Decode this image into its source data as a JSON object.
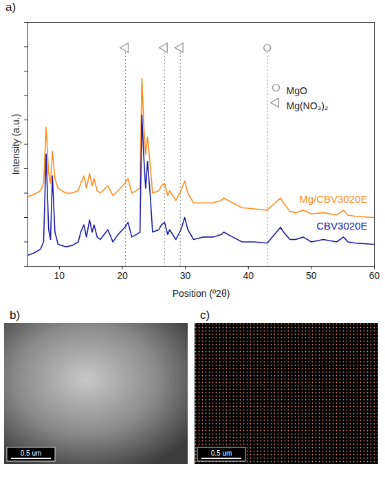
{
  "panel_label": "a)",
  "chart_data": {
    "type": "line",
    "x_label": "Position (º2θ)",
    "y_label": "Intensity (a.u.)",
    "xlim": [
      5,
      60
    ],
    "xticks": [
      10,
      20,
      30,
      40,
      50,
      60
    ],
    "ylim": [
      0,
      100
    ],
    "yticks": [
      0,
      10,
      20,
      30,
      40,
      50,
      60,
      70,
      80,
      90,
      100
    ],
    "tick_labels": "x",
    "legend": "upper right",
    "x": [
      5,
      6,
      7,
      7.5,
      7.9,
      8.3,
      8.6,
      8.9,
      9.3,
      9.8,
      11,
      12,
      13,
      13.4,
      13.9,
      14.3,
      14.8,
      15.2,
      15.5,
      16,
      16.5,
      17.7,
      18.5,
      19.3,
      20.4,
      20.9,
      21.5,
      22.2,
      22.8,
      23.1,
      23.4,
      23.7,
      24.0,
      24.4,
      24.8,
      25.8,
      26.2,
      26.7,
      27.2,
      27.5,
      28.5,
      29.3,
      29.9,
      30.4,
      31.3,
      32.8,
      34.4,
      35.7,
      36.1,
      37.5,
      39,
      41,
      43,
      45.1,
      45.6,
      46.6,
      47.5,
      48.7,
      50,
      51.9,
      54,
      55.1,
      55.8,
      57,
      60
    ],
    "series": [
      {
        "name": "Mg/CBV3020E",
        "color": "#ff8c1a",
        "values": [
          28.5,
          29.5,
          31,
          34,
          57,
          38,
          34,
          47,
          36,
          32,
          30,
          30,
          31,
          34,
          37,
          32,
          38,
          33,
          36,
          31,
          30,
          33,
          29,
          31,
          34,
          36,
          30,
          31,
          32,
          77,
          58,
          46,
          53,
          42,
          30,
          31,
          33,
          34,
          29,
          31,
          27,
          31,
          35,
          30,
          26,
          26,
          26,
          27,
          28,
          26,
          24,
          23.5,
          23,
          28,
          26,
          22.5,
          22,
          23,
          21.5,
          22,
          21,
          23,
          21,
          20.5,
          20
        ]
      },
      {
        "name": "CBV3020E",
        "color": "#1a1aaa",
        "values": [
          4.5,
          5.5,
          7,
          10,
          46,
          15,
          11,
          37,
          14,
          9,
          8,
          8.5,
          10,
          14,
          17,
          12,
          19,
          14,
          17,
          12,
          11,
          15,
          10,
          13,
          16,
          18,
          12,
          13,
          14,
          62,
          45,
          32,
          43,
          30,
          14,
          15,
          17,
          18,
          13,
          15,
          11,
          15,
          20,
          15,
          11,
          12,
          12,
          13,
          14,
          12,
          10,
          10,
          9.5,
          16,
          14,
          11,
          11,
          12,
          10,
          11,
          10,
          12,
          10,
          9.5,
          9
        ]
      }
    ],
    "reference_markers": [
      {
        "name": "MgO",
        "marker": "circle",
        "positions": [
          43.0
        ]
      },
      {
        "name": "Mg(NO₃)₂",
        "marker": "triangle-left",
        "positions": [
          20.5,
          26.7,
          29.2
        ]
      }
    ]
  },
  "images": [
    {
      "panel_label": "b)",
      "scale_bar": "0.5 um"
    },
    {
      "panel_label": "c)",
      "scale_bar": "0.5 um"
    }
  ]
}
